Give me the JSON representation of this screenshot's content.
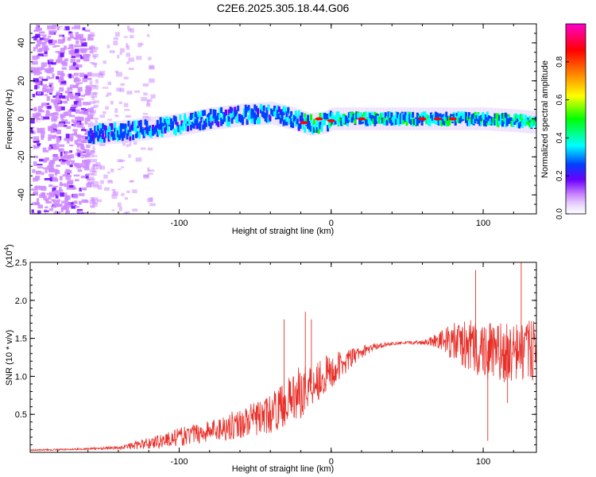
{
  "title": "C2E6.2025.305.18.44.G06",
  "chart_data": [
    {
      "type": "heatmap",
      "xlabel": "Height of straight line (km)",
      "ylabel": "Frequency (Hz)",
      "xlim": [
        -198,
        135
      ],
      "ylim": [
        -50,
        50
      ],
      "xticks": [
        -100,
        0,
        100
      ],
      "xtick_labels": [
        "-100",
        "0",
        "100"
      ],
      "yticks": [
        -40,
        -20,
        0,
        20,
        40
      ],
      "ytick_labels": [
        "-40",
        "-20",
        "0",
        "20",
        "40"
      ],
      "colorbar": {
        "label": "Normalized spectral amplitude",
        "range": [
          0,
          1
        ],
        "ticks": [
          0.0,
          0.2,
          0.4,
          0.6,
          0.8
        ],
        "tick_labels": [
          "0.0",
          "0.2",
          "0.4",
          "0.6",
          "0.8"
        ],
        "colormap": [
          "#ffffff",
          "#cc88ff",
          "#6a00ff",
          "#0040ff",
          "#00ffff",
          "#00ff00",
          "#ffff00",
          "#ff8000",
          "#ff0000",
          "#ff00cc"
        ]
      },
      "ridge": [
        [
          -160,
          -8
        ],
        [
          -140,
          -7
        ],
        [
          -120,
          -5
        ],
        [
          -100,
          -3
        ],
        [
          -80,
          0
        ],
        [
          -60,
          2
        ],
        [
          -40,
          3
        ],
        [
          -25,
          0
        ],
        [
          -15,
          -3
        ],
        [
          -5,
          -2
        ],
        [
          0,
          0
        ],
        [
          20,
          0
        ],
        [
          60,
          0
        ],
        [
          80,
          0
        ],
        [
          100,
          0
        ],
        [
          120,
          -1
        ],
        [
          135,
          -2
        ]
      ],
      "ridge_peak": [
        [
          -18,
          -2
        ],
        [
          -8,
          0
        ],
        [
          0,
          -1
        ],
        [
          20,
          0
        ],
        [
          60,
          0
        ],
        [
          70,
          0
        ],
        [
          80,
          0
        ]
      ]
    },
    {
      "type": "line",
      "xlabel": "Height of straight line (km)",
      "ylabel": "SNR (10 * v/v)",
      "y_scale_label": "(x10",
      "y_scale_exp": "4",
      "y_scale_close": ")",
      "xlim": [
        -198,
        135
      ],
      "ylim": [
        0,
        2.5
      ],
      "xticks": [
        -100,
        0,
        100
      ],
      "xtick_labels": [
        "-100",
        "0",
        "100"
      ],
      "yticks": [
        0.5,
        1.0,
        1.5,
        2.0,
        2.5
      ],
      "ytick_labels": [
        "0.5",
        "1.0",
        "1.5",
        "2.0",
        "2.5"
      ],
      "color": "#e8302a",
      "envelope": [
        [
          -198,
          0.03,
          0.01
        ],
        [
          -170,
          0.04,
          0.01
        ],
        [
          -140,
          0.06,
          0.02
        ],
        [
          -120,
          0.12,
          0.08
        ],
        [
          -100,
          0.2,
          0.12
        ],
        [
          -80,
          0.28,
          0.15
        ],
        [
          -60,
          0.38,
          0.2
        ],
        [
          -40,
          0.5,
          0.25
        ],
        [
          -30,
          0.65,
          0.3
        ],
        [
          -20,
          0.8,
          0.35
        ],
        [
          -10,
          0.95,
          0.3
        ],
        [
          0,
          1.05,
          0.25
        ],
        [
          10,
          1.2,
          0.15
        ],
        [
          20,
          1.32,
          0.08
        ],
        [
          30,
          1.4,
          0.04
        ],
        [
          40,
          1.43,
          0.02
        ],
        [
          50,
          1.44,
          0.02
        ],
        [
          60,
          1.45,
          0.03
        ],
        [
          70,
          1.48,
          0.1
        ],
        [
          80,
          1.45,
          0.25
        ],
        [
          90,
          1.4,
          0.35
        ],
        [
          100,
          1.35,
          0.4
        ],
        [
          110,
          1.3,
          0.4
        ],
        [
          120,
          1.3,
          0.4
        ],
        [
          135,
          1.35,
          0.4
        ]
      ],
      "spikes": [
        [
          -31,
          1.75
        ],
        [
          -17,
          1.85
        ],
        [
          -13,
          1.75
        ],
        [
          95,
          2.4
        ],
        [
          125,
          2.5
        ],
        [
          103,
          0.15
        ],
        [
          116,
          0.65
        ]
      ]
    }
  ]
}
